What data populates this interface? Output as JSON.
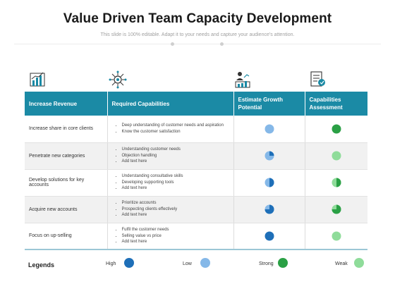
{
  "header": {
    "title": "Value Driven Team Capacity Development",
    "subtitle": "This slide is 100% editable. Adapt it to your needs and capture your audience's attention."
  },
  "icons": [
    "bar-chart-icon",
    "gear-network-icon",
    "growth-person-icon",
    "report-checklist-icon"
  ],
  "table": {
    "columns": [
      "Increase Revenue",
      "Required Capabilities",
      "Estimate Growth Potential",
      "Capabilities Assessment"
    ],
    "rows": [
      {
        "revenue": "Increase share in core clients",
        "capabilities": [
          "Deep understanding of customer needs and aspiration",
          "Know the customer satisfaction"
        ],
        "growth_level": 0.0,
        "growth_color": "#85b8e8",
        "assessment_level": 1.0,
        "assessment_color": "#2aa045"
      },
      {
        "revenue": "Penetrate new categories",
        "capabilities": [
          "Understanding customer needs",
          "Objection handling",
          "Add text here"
        ],
        "growth_level": 0.25,
        "growth_color": "#85b8e8",
        "assessment_level": 0.0,
        "assessment_color": "#8fdc9a"
      },
      {
        "revenue": "Develop solutions for key accounts",
        "capabilities": [
          "Understanding consultative skills",
          "Developing supporting tools",
          "Add text here"
        ],
        "growth_level": 0.5,
        "growth_color": "#85b8e8",
        "assessment_level": 0.5,
        "assessment_color": "#8fdc9a"
      },
      {
        "revenue": "Acquire new accounts",
        "capabilities": [
          "Prioritize accounts",
          "Prospecting clients effectively",
          "Add text here"
        ],
        "growth_level": 0.75,
        "growth_color": "#85b8e8",
        "assessment_level": 0.75,
        "assessment_color": "#8fdc9a"
      },
      {
        "revenue": "Focus on up-selling",
        "capabilities": [
          "Fulfil the customer needs",
          "Selling value vs price",
          "Add text here"
        ],
        "growth_level": 1.0,
        "growth_color": "#85b8e8",
        "assessment_level": 0.0,
        "assessment_color": "#8fdc9a"
      }
    ]
  },
  "legend": {
    "title": "Legends",
    "items": [
      {
        "label": "High",
        "color": "#1e6fb8"
      },
      {
        "label": "Low",
        "color": "#85b8e8"
      },
      {
        "label": "Strong",
        "color": "#2aa045"
      },
      {
        "label": "Weak",
        "color": "#8fdc9a"
      }
    ]
  },
  "colors": {
    "header_bg": "#1b8aa5",
    "high_blue": "#1e6fb8",
    "low_blue": "#85b8e8",
    "strong_green": "#2aa045",
    "weak_green": "#8fdc9a"
  }
}
